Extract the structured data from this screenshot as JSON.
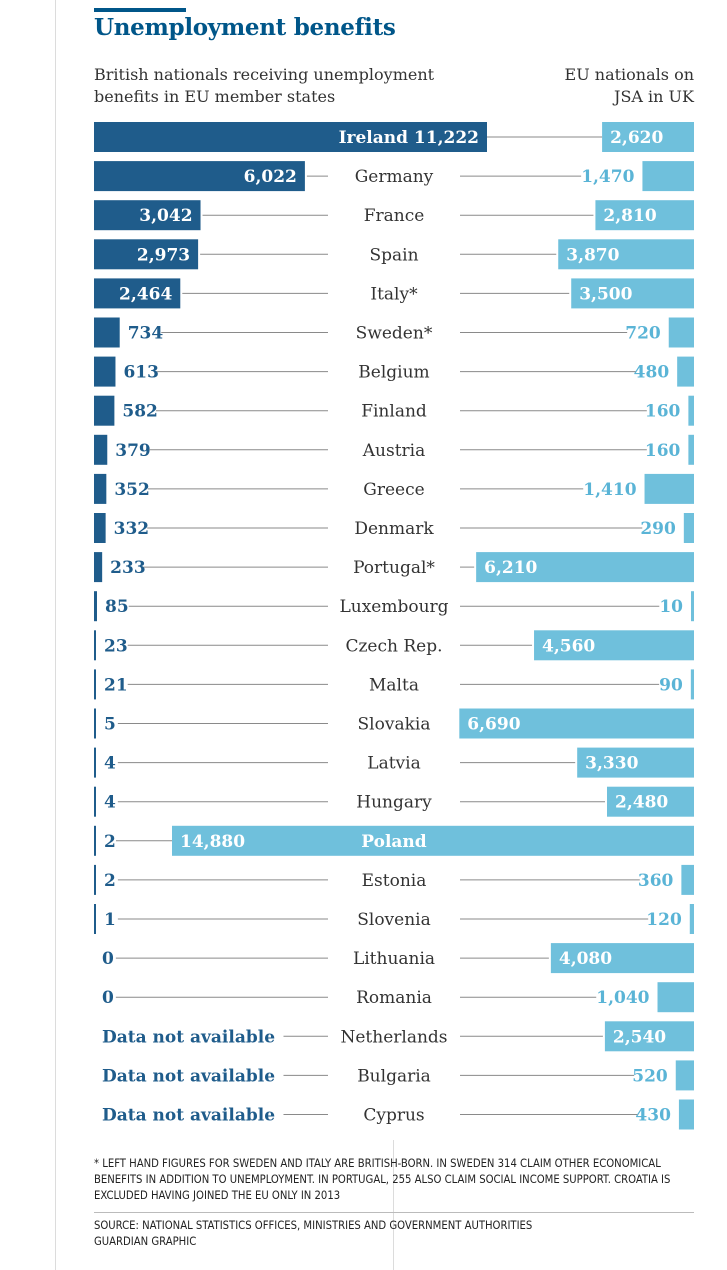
{
  "header": {
    "title": "Unemployment benefits",
    "left_subtitle": "British nationals receiving unemployment benefits in EU member states",
    "right_subtitle": "EU nationals on JSA in UK"
  },
  "footer": {
    "footnote": "* Left hand figures for Sweden and Italy are British-born. In Sweden 314 claim other economical benefits in addition to unemployment. In Portugal, 255 also claim social income support. Croatia is excluded having joined the EU only in 2013",
    "source": "Source: National statistics offices, ministries and government authorities",
    "credit": "Guardian graphic"
  },
  "colors": {
    "left_bar": "#1f5c8b",
    "right_bar": "#6fc0dc",
    "left_text": "#1f5c8b",
    "right_text": "#5ab4d6",
    "title": "#005689"
  },
  "chart_data": {
    "type": "bar",
    "layout": "butterfly",
    "categories": [
      "Ireland",
      "Germany",
      "France",
      "Spain",
      "Italy*",
      "Sweden*",
      "Belgium",
      "Finland",
      "Austria",
      "Greece",
      "Denmark",
      "Portugal*",
      "Luxembourg",
      "Czech Rep.",
      "Malta",
      "Slovakia",
      "Latvia",
      "Hungary",
      "Poland",
      "Estonia",
      "Slovenia",
      "Lithuania",
      "Romania",
      "Netherlands",
      "Bulgaria",
      "Cyprus"
    ],
    "series": [
      {
        "name": "British nationals receiving unemployment benefits in EU member states",
        "values": [
          11222,
          6022,
          3042,
          2973,
          2464,
          734,
          613,
          582,
          379,
          352,
          332,
          233,
          85,
          23,
          21,
          5,
          4,
          4,
          2,
          2,
          1,
          0,
          0,
          null,
          null,
          null
        ],
        "labels": [
          "11,222",
          "6,022",
          "3,042",
          "2,973",
          "2,464",
          "734",
          "613",
          "582",
          "379",
          "352",
          "332",
          "233",
          "85",
          "23",
          "21",
          "5",
          "4",
          "4",
          "2",
          "2",
          "1",
          "0",
          "0",
          "Data not available",
          "Data not available",
          "Data not available"
        ]
      },
      {
        "name": "EU nationals on JSA in UK",
        "values": [
          2620,
          1470,
          2810,
          3870,
          3500,
          720,
          480,
          160,
          160,
          1410,
          290,
          6210,
          10,
          4560,
          90,
          6690,
          3330,
          2480,
          14880,
          360,
          120,
          4080,
          1040,
          2540,
          520,
          430
        ],
        "labels": [
          "2,620",
          "1,470",
          "2,810",
          "3,870",
          "3,500",
          "720",
          "480",
          "160",
          "160",
          "1,410",
          "290",
          "6,210",
          "10",
          "4,560",
          "90",
          "6,690",
          "3,330",
          "2,480",
          "14,880",
          "360",
          "120",
          "4,080",
          "1,040",
          "2,540",
          "520",
          "430"
        ]
      }
    ],
    "missing_label": "Data not available",
    "highlight": [
      "Ireland",
      "Poland"
    ]
  }
}
